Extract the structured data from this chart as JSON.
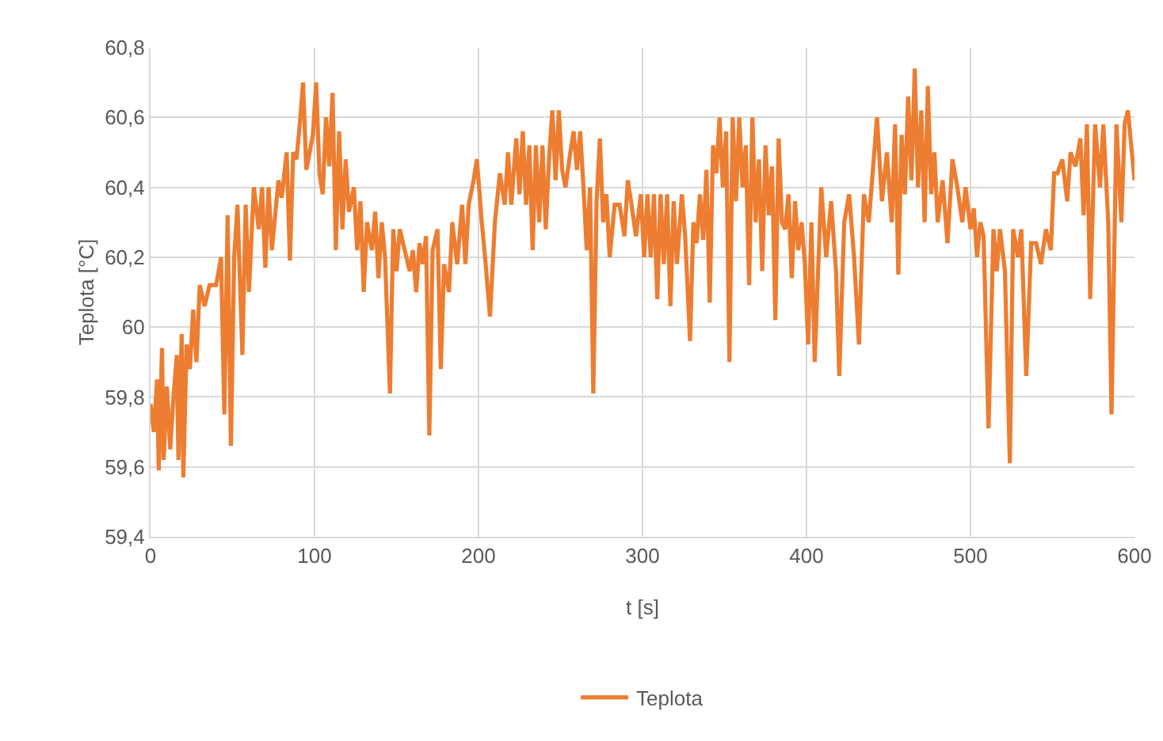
{
  "chart_data": {
    "type": "line",
    "xlabel": "t [s]",
    "ylabel": "Teplota [°C]",
    "xlim": [
      0,
      600
    ],
    "xticks": [
      0,
      100,
      200,
      300,
      400,
      500,
      600
    ],
    "ylim": [
      59.4,
      60.8
    ],
    "yticks": [
      {
        "value": 59.4,
        "label": "59,4"
      },
      {
        "value": 59.6,
        "label": "59,6"
      },
      {
        "value": 59.8,
        "label": "59,8"
      },
      {
        "value": 60,
        "label": "60"
      },
      {
        "value": 60.2,
        "label": "60,2"
      },
      {
        "value": 60.4,
        "label": "60,4"
      },
      {
        "value": 60.6,
        "label": "60,6"
      },
      {
        "value": 60.8,
        "label": "60,8"
      }
    ],
    "grid": true,
    "legend": "bottom",
    "marker": "none",
    "line_style": "solid",
    "series": [
      {
        "name": "Teplota",
        "color": "#ed7d31",
        "x": [
          0,
          2,
          4,
          5,
          7,
          8,
          10,
          12,
          14,
          16,
          17,
          19,
          20,
          22,
          24,
          26,
          28,
          30,
          33,
          36,
          40,
          43,
          45,
          47,
          49,
          51,
          53,
          56,
          58,
          60,
          63,
          66,
          68,
          70,
          72,
          74,
          76,
          78,
          80,
          83,
          85,
          87,
          89,
          91,
          93,
          95,
          97,
          99,
          101,
          103,
          105,
          107,
          109,
          111,
          113,
          115,
          117,
          119,
          121,
          124,
          126,
          128,
          130,
          132,
          135,
          137,
          139,
          141,
          143,
          146,
          148,
          150,
          152,
          155,
          158,
          160,
          162,
          164,
          166,
          168,
          170,
          172,
          175,
          177,
          179,
          182,
          184,
          187,
          190,
          192,
          194,
          197,
          199,
          202,
          204,
          207,
          210,
          213,
          216,
          218,
          220,
          223,
          225,
          227,
          229,
          231,
          233,
          235,
          237,
          239,
          241,
          243,
          245,
          247,
          249,
          251,
          253,
          256,
          258,
          260,
          262,
          264,
          266,
          268,
          270,
          272,
          274,
          276,
          278,
          280,
          283,
          286,
          289,
          291,
          293,
          296,
          299,
          301,
          303,
          305,
          307,
          309,
          311,
          313,
          315,
          317,
          319,
          321,
          324,
          326,
          329,
          331,
          333,
          335,
          337,
          339,
          341,
          343,
          345,
          347,
          349,
          351,
          353,
          355,
          357,
          359,
          361,
          363,
          365,
          367,
          369,
          371,
          373,
          375,
          377,
          379,
          381,
          383,
          385,
          387,
          389,
          391,
          393,
          395,
          397,
          399,
          401,
          403,
          405,
          407,
          409,
          412,
          415,
          418,
          420,
          423,
          426,
          429,
          432,
          435,
          438,
          441,
          443,
          446,
          449,
          452,
          454,
          456,
          458,
          460,
          462,
          464,
          466,
          468,
          470,
          472,
          474,
          476,
          478,
          480,
          483,
          486,
          489,
          492,
          495,
          497,
          500,
          502,
          504,
          506,
          508,
          511,
          514,
          516,
          518,
          521,
          524,
          526,
          529,
          531,
          534,
          537,
          540,
          543,
          546,
          549,
          551,
          553,
          556,
          559,
          561,
          564,
          567,
          569,
          571,
          573,
          576,
          579,
          581,
          584,
          586,
          589,
          592,
          594,
          596,
          600
        ],
        "values": [
          59.78,
          59.7,
          59.85,
          59.59,
          59.94,
          59.62,
          59.83,
          59.65,
          59.8,
          59.92,
          59.62,
          59.98,
          59.57,
          59.95,
          59.88,
          60.05,
          59.9,
          60.12,
          60.06,
          60.12,
          60.12,
          60.2,
          59.75,
          60.32,
          59.66,
          60.2,
          60.35,
          59.92,
          60.35,
          60.1,
          60.4,
          60.28,
          60.4,
          60.17,
          60.4,
          60.22,
          60.32,
          60.42,
          60.37,
          60.5,
          60.19,
          60.5,
          60.48,
          60.58,
          60.7,
          60.45,
          60.5,
          60.55,
          60.7,
          60.44,
          60.38,
          60.6,
          60.46,
          60.67,
          60.22,
          60.56,
          60.28,
          60.48,
          60.33,
          60.4,
          60.22,
          60.36,
          60.1,
          60.3,
          60.22,
          60.33,
          60.14,
          60.3,
          60.2,
          59.81,
          60.28,
          60.16,
          60.28,
          60.22,
          60.16,
          60.22,
          60.1,
          60.24,
          60.18,
          60.26,
          59.69,
          60.22,
          60.28,
          59.88,
          60.18,
          60.1,
          60.3,
          60.18,
          60.35,
          60.18,
          60.35,
          60.42,
          60.48,
          60.3,
          60.2,
          60.03,
          60.3,
          60.44,
          60.35,
          60.5,
          60.35,
          60.54,
          60.38,
          60.56,
          60.35,
          60.52,
          60.22,
          60.52,
          60.3,
          60.52,
          60.28,
          60.48,
          60.62,
          60.42,
          60.62,
          60.45,
          60.4,
          60.5,
          60.56,
          60.45,
          60.56,
          60.4,
          60.22,
          60.4,
          59.81,
          60.36,
          60.54,
          60.3,
          60.38,
          60.2,
          60.35,
          60.35,
          60.26,
          60.42,
          60.36,
          60.26,
          60.38,
          60.2,
          60.38,
          60.2,
          60.38,
          60.08,
          60.38,
          60.18,
          60.38,
          60.06,
          60.36,
          60.18,
          60.38,
          60.26,
          59.96,
          60.3,
          60.24,
          60.38,
          60.25,
          60.45,
          60.07,
          60.52,
          60.44,
          60.6,
          60.4,
          60.56,
          59.9,
          60.6,
          60.36,
          60.6,
          60.4,
          60.52,
          60.12,
          60.6,
          60.3,
          60.48,
          60.16,
          60.52,
          60.32,
          60.46,
          60.02,
          60.54,
          60.3,
          60.28,
          60.38,
          60.14,
          60.36,
          60.22,
          60.3,
          60.18,
          59.95,
          60.3,
          59.9,
          60.15,
          60.4,
          60.2,
          60.36,
          60.16,
          59.86,
          60.3,
          60.38,
          60.2,
          59.95,
          60.38,
          60.3,
          60.48,
          60.6,
          60.36,
          60.5,
          60.3,
          60.58,
          60.15,
          60.55,
          60.38,
          60.66,
          60.42,
          60.74,
          60.4,
          60.62,
          60.3,
          60.69,
          60.38,
          60.5,
          60.3,
          60.42,
          60.24,
          60.48,
          60.4,
          60.3,
          60.4,
          60.28,
          60.34,
          60.2,
          60.3,
          60.26,
          59.71,
          60.28,
          60.16,
          60.28,
          60.16,
          59.61,
          60.28,
          60.2,
          60.28,
          59.86,
          60.24,
          60.24,
          60.18,
          60.28,
          60.22,
          60.44,
          60.44,
          60.48,
          60.36,
          60.5,
          60.46,
          60.54,
          60.32,
          60.58,
          60.08,
          60.58,
          60.4,
          60.58,
          60.3,
          59.75,
          60.58,
          60.3,
          60.58,
          60.62,
          60.42
        ]
      }
    ]
  }
}
